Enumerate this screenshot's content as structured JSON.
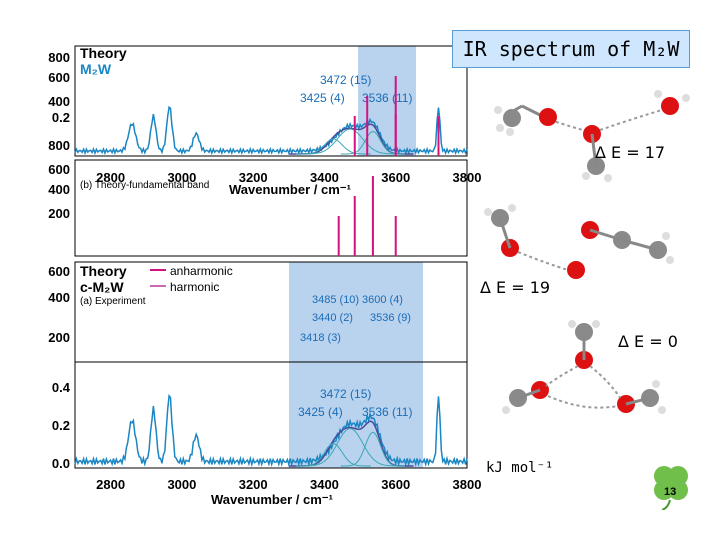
{
  "slide": {
    "title": "IR spectrum of M₂W",
    "page_number": "13",
    "energy_unit": "kJ mol⁻¹"
  },
  "structures": [
    {
      "label": "Δ E = 17"
    },
    {
      "label": "Δ E = 19"
    },
    {
      "label": "Δ E = 0"
    }
  ],
  "panels": {
    "top": {
      "label_theory": "Theory",
      "label_species": "M₂W",
      "peaks": [
        "3472 (15)",
        "3425 (4)",
        "3536 (11)"
      ]
    },
    "bottom": {
      "label_theory": "Theory",
      "label_species": "c-M₂W",
      "legend": [
        "anharmonic",
        "harmonic"
      ],
      "sub_label": "(a) Experiment",
      "peaks_mid": [
        "3485 (10)",
        "3600 (4)",
        "3440 (2)",
        "3536 (9)",
        "3418 (3)"
      ],
      "peaks_low": [
        "3472 (15)",
        "3425 (4)",
        "3536 (11)"
      ],
      "xlabel": "Wavenumber / cm⁻¹"
    },
    "middle": {
      "xlabel": "Wavenumber / cm⁻¹",
      "sub_label": "(b) Theory-fundamental band"
    }
  },
  "chart_data": {
    "type": "line",
    "xlabel": "Wavenumber / cm⁻¹",
    "x_ticks": [
      2800,
      3000,
      3200,
      3400,
      3600,
      3800
    ],
    "y_ticks_top": [
      800,
      600,
      400,
      200
    ],
    "y_ticks_bottom": [
      0.4,
      0.2,
      0.0
    ],
    "xlim": [
      2700,
      3800
    ],
    "series": [
      {
        "name": "anharmonic",
        "color": "#d4117f"
      },
      {
        "name": "harmonic",
        "color": "#c86bb3"
      }
    ],
    "colors": {
      "experiment": "#1a86c4",
      "fit": "#3aa8b5",
      "highlight": "#b9d2ee"
    }
  }
}
